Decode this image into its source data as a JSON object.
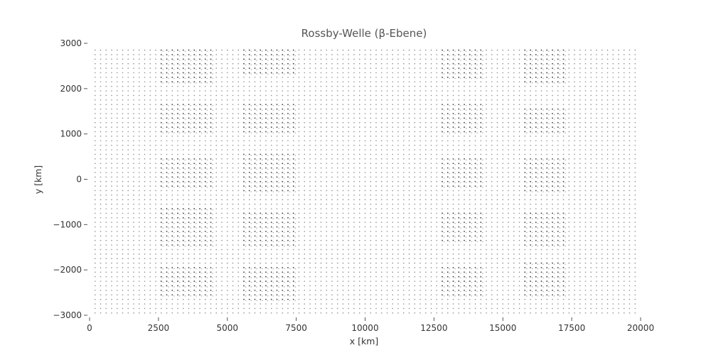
{
  "chart_data": {
    "type": "scatter",
    "title": "Rossby-Welle (β-Ebene)",
    "xlabel": "x [km]",
    "ylabel": "y [km]",
    "xlim": [
      0,
      20000
    ],
    "ylim": [
      -3000,
      3000
    ],
    "xticks": [
      0,
      2500,
      5000,
      7500,
      10000,
      12500,
      15000,
      17500,
      20000
    ],
    "yticks": [
      -3000,
      -2000,
      -1000,
      0,
      1000,
      2000,
      3000
    ],
    "xtick_labels": [
      "0",
      "2500",
      "5000",
      "7500",
      "10000",
      "12500",
      "15000",
      "17500",
      "20000"
    ],
    "ytick_labels": [
      "−3000",
      "−2000",
      "−1000",
      "0",
      "1000",
      "2000",
      "3000"
    ],
    "grid": false,
    "legend": "none",
    "marker_color": "#333333",
    "grid_points": {
      "x_start": 200,
      "x_end": 19800,
      "nx": 99,
      "y_start": -2950,
      "y_end": 2850,
      "ny": 59
    },
    "dense_bands": [
      {
        "x_range": [
          2600,
          4400
        ],
        "peak_x": 3500,
        "y_ranges": [
          [
            2150,
            2900
          ],
          [
            1000,
            1700
          ],
          [
            -200,
            500
          ],
          [
            -1450,
            -600
          ],
          [
            -2600,
            -1900
          ]
        ]
      },
      {
        "x_range": [
          5600,
          7500
        ],
        "peak_x": 6500,
        "y_ranges": [
          [
            2350,
            2950
          ],
          [
            1050,
            1650
          ],
          [
            -250,
            550
          ],
          [
            -1450,
            -700
          ],
          [
            -2650,
            -1900
          ]
        ]
      },
      {
        "x_range": [
          12700,
          14300
        ],
        "peak_x": 13300,
        "y_ranges": [
          [
            2200,
            2950
          ],
          [
            1050,
            1700
          ],
          [
            -150,
            450
          ],
          [
            -1350,
            -700
          ],
          [
            -2600,
            -1900
          ]
        ]
      },
      {
        "x_range": [
          15700,
          17300
        ],
        "peak_x": 16500,
        "y_ranges": [
          [
            2100,
            2850
          ],
          [
            1000,
            1600
          ],
          [
            -300,
            450
          ],
          [
            -1450,
            -750
          ],
          [
            -2550,
            -1850
          ]
        ]
      }
    ]
  }
}
